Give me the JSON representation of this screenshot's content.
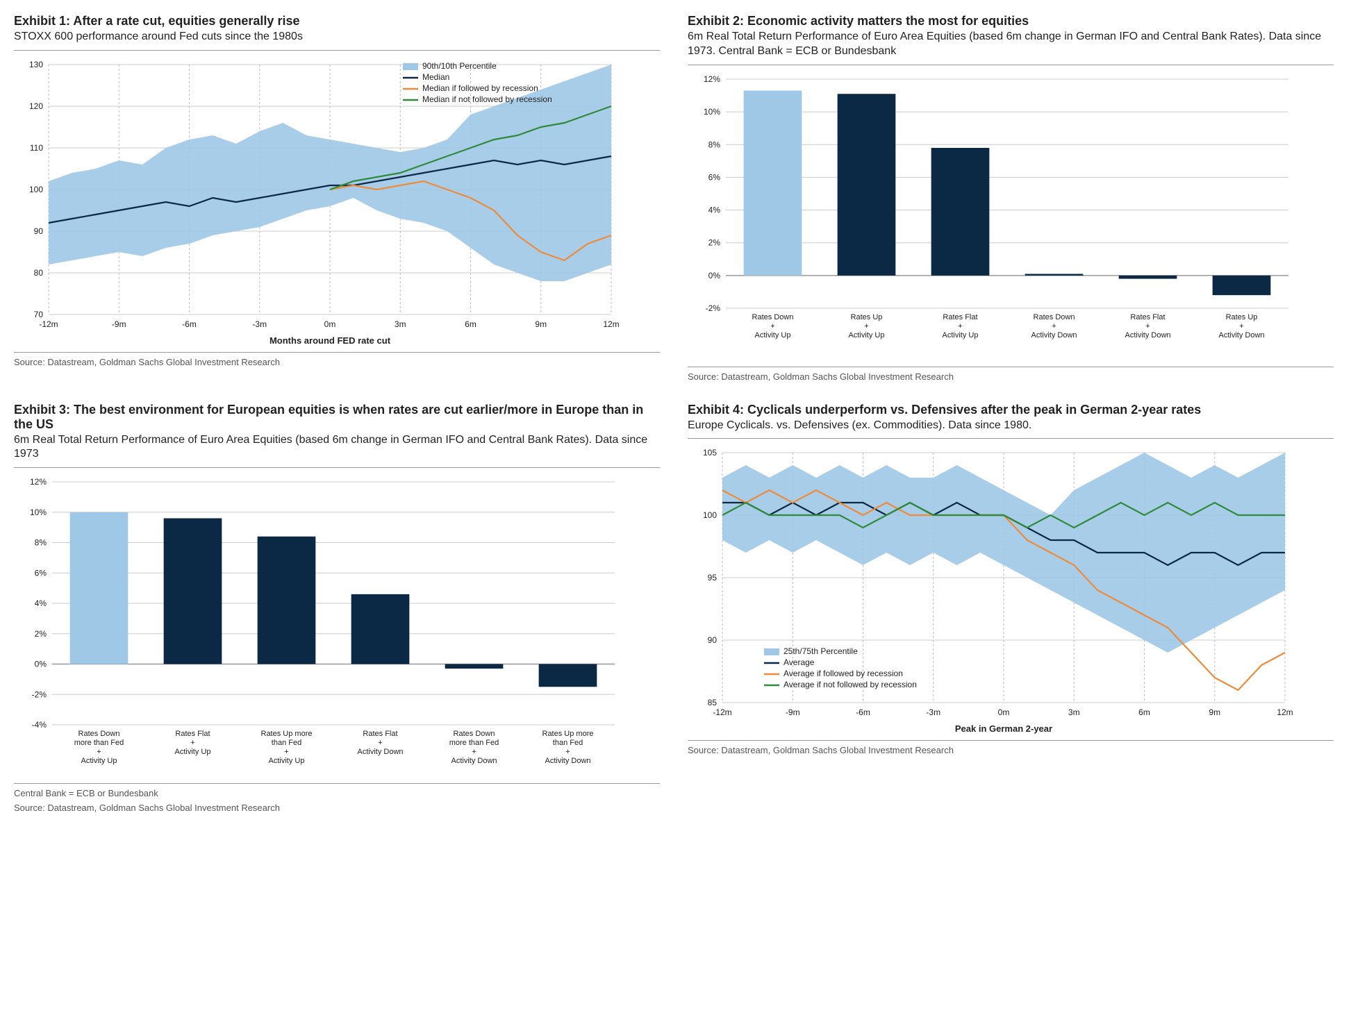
{
  "colors": {
    "band": "#9fc8e6",
    "median": "#0b2845",
    "recession": "#ed8b3b",
    "no_recession": "#2f8a3a",
    "bar_highlight": "#9fc8e6",
    "bar_normal": "#0b2845",
    "grid": "#cccccc",
    "grid_dash": "#bbbbbb",
    "axis": "#222222",
    "bg": "#ffffff"
  },
  "exhibit1": {
    "title": "Exhibit 1: After a rate cut, equities generally rise",
    "subtitle": "STOXX 600 performance around Fed cuts since the 1980s",
    "source": "Source: Datastream, Goldman Sachs Global Investment Research",
    "xlabel": "Months around FED rate cut",
    "type": "line",
    "ylim": [
      70,
      130
    ],
    "ytick_step": 10,
    "xlim": [
      -12,
      12
    ],
    "xticks": [
      -12,
      -9,
      -6,
      -3,
      0,
      3,
      6,
      9,
      12
    ],
    "xticklabels": [
      "-12m",
      "-9m",
      "-6m",
      "-3m",
      "0m",
      "3m",
      "6m",
      "9m",
      "12m"
    ],
    "legend": [
      {
        "label": "90th/10th Percentile",
        "type": "band",
        "color": "#9fc8e6"
      },
      {
        "label": "Median",
        "type": "line",
        "color": "#0b2845"
      },
      {
        "label": "Median if followed by recession",
        "type": "line",
        "color": "#ed8b3b"
      },
      {
        "label": "Median if not followed by recession",
        "type": "line",
        "color": "#2f8a3a"
      }
    ],
    "band_upper": [
      102,
      104,
      105,
      107,
      106,
      110,
      112,
      113,
      111,
      114,
      116,
      113,
      112,
      111,
      110,
      109,
      110,
      112,
      118,
      120,
      122,
      124,
      126,
      128,
      130
    ],
    "band_lower": [
      82,
      83,
      84,
      85,
      84,
      86,
      87,
      89,
      90,
      91,
      93,
      95,
      96,
      98,
      95,
      93,
      92,
      90,
      86,
      82,
      80,
      78,
      78,
      80,
      82
    ],
    "median": [
      92,
      93,
      94,
      95,
      96,
      97,
      96,
      98,
      97,
      98,
      99,
      100,
      101,
      101,
      102,
      103,
      104,
      105,
      106,
      107,
      106,
      107,
      106,
      107,
      108
    ],
    "recession_x": [
      0,
      1,
      2,
      3,
      4,
      5,
      6,
      7,
      8,
      9,
      10,
      11,
      12
    ],
    "recession_y": [
      100,
      101,
      100,
      101,
      102,
      100,
      98,
      95,
      89,
      85,
      83,
      87,
      89
    ],
    "no_recession_x": [
      0,
      1,
      2,
      3,
      4,
      5,
      6,
      7,
      8,
      9,
      10,
      11,
      12
    ],
    "no_recession_y": [
      100,
      102,
      103,
      104,
      106,
      108,
      110,
      112,
      113,
      115,
      116,
      118,
      120
    ]
  },
  "exhibit2": {
    "title": "Exhibit 2: Economic activity matters the most for equities",
    "subtitle": "6m Real Total Return Performance of Euro Area Equities (based 6m change in German IFO and Central Bank Rates). Data since 1973. Central Bank = ECB or Bundesbank",
    "source": "Source: Datastream, Goldman Sachs Global Investment Research",
    "type": "bar",
    "ylim": [
      -2,
      12
    ],
    "ytick_step": 2,
    "categories": [
      [
        "Rates Down",
        "+",
        "Activity Up"
      ],
      [
        "Rates Up",
        "+",
        "Activity Up"
      ],
      [
        "Rates Flat",
        "+",
        "Activity Up"
      ],
      [
        "Rates Down",
        "+",
        "Activity Down"
      ],
      [
        "Rates Flat",
        "+",
        "Activity Down"
      ],
      [
        "Rates Up",
        "+",
        "Activity Down"
      ]
    ],
    "values": [
      11.3,
      11.1,
      7.8,
      0.1,
      -0.2,
      -1.2
    ],
    "bar_colors": [
      "#9fc8e6",
      "#0b2845",
      "#0b2845",
      "#0b2845",
      "#0b2845",
      "#0b2845"
    ]
  },
  "exhibit3": {
    "title": "Exhibit 3: The best environment for European equities is when rates are cut earlier/more in Europe than in the US",
    "subtitle": "6m Real Total Return Performance of Euro Area Equities (based 6m change in German IFO and Central Bank Rates). Data since 1973",
    "footnote": "Central Bank = ECB or Bundesbank",
    "source": "Source: Datastream, Goldman Sachs Global Investment Research",
    "type": "bar",
    "ylim": [
      -4,
      12
    ],
    "ytick_step": 2,
    "categories": [
      [
        "Rates Down",
        "more than Fed",
        "+",
        "Activity Up"
      ],
      [
        "Rates Flat",
        "+",
        "Activity Up"
      ],
      [
        "Rates Up more",
        "than Fed",
        "+",
        "Activity Up"
      ],
      [
        "Rates Flat",
        "+",
        "Activity Down"
      ],
      [
        "Rates Down",
        "more than Fed",
        "+",
        "Activity Down"
      ],
      [
        "Rates Up more",
        "than Fed",
        "+",
        "Activity Down"
      ]
    ],
    "values": [
      10.0,
      9.6,
      8.4,
      4.6,
      -0.3,
      -1.5
    ],
    "bar_colors": [
      "#9fc8e6",
      "#0b2845",
      "#0b2845",
      "#0b2845",
      "#0b2845",
      "#0b2845"
    ]
  },
  "exhibit4": {
    "title": "Exhibit 4: Cyclicals underperform vs. Defensives after the peak in German 2-year rates",
    "subtitle": "Europe Cyclicals. vs. Defensives (ex. Commodities). Data since 1980.",
    "source": "Source: Datastream, Goldman Sachs Global Investment Research",
    "xlabel": "Peak in German 2-year",
    "type": "line",
    "ylim": [
      85,
      105
    ],
    "ytick_step": 5,
    "xlim": [
      -12,
      12
    ],
    "xticks": [
      -12,
      -9,
      -6,
      -3,
      0,
      3,
      6,
      9,
      12
    ],
    "xticklabels": [
      "-12m",
      "-9m",
      "-6m",
      "-3m",
      "0m",
      "3m",
      "6m",
      "9m",
      "12m"
    ],
    "legend": [
      {
        "label": "25th/75th Percentile",
        "type": "band",
        "color": "#9fc8e6"
      },
      {
        "label": "Average",
        "type": "line",
        "color": "#0b2845"
      },
      {
        "label": "Average if followed by recession",
        "type": "line",
        "color": "#ed8b3b"
      },
      {
        "label": "Average if not followed by recession",
        "type": "line",
        "color": "#2f8a3a"
      }
    ],
    "band_upper": [
      103,
      104,
      103,
      104,
      103,
      104,
      103,
      104,
      103,
      103,
      104,
      103,
      102,
      101,
      100,
      102,
      103,
      104,
      105,
      104,
      103,
      104,
      103,
      104,
      105
    ],
    "band_lower": [
      98,
      97,
      98,
      97,
      98,
      97,
      96,
      97,
      96,
      97,
      96,
      97,
      96,
      95,
      94,
      93,
      92,
      91,
      90,
      89,
      90,
      91,
      92,
      93,
      94
    ],
    "average": [
      101,
      101,
      100,
      101,
      100,
      101,
      101,
      100,
      101,
      100,
      101,
      100,
      100,
      99,
      98,
      98,
      97,
      97,
      97,
      96,
      97,
      97,
      96,
      97,
      97
    ],
    "recession": [
      102,
      101,
      102,
      101,
      102,
      101,
      100,
      101,
      100,
      100,
      100,
      100,
      100,
      98,
      97,
      96,
      94,
      93,
      92,
      91,
      89,
      87,
      86,
      88,
      89
    ],
    "no_recession": [
      100,
      101,
      100,
      100,
      100,
      100,
      99,
      100,
      101,
      100,
      100,
      100,
      100,
      99,
      100,
      99,
      100,
      101,
      100,
      101,
      100,
      101,
      100,
      100,
      100
    ]
  }
}
